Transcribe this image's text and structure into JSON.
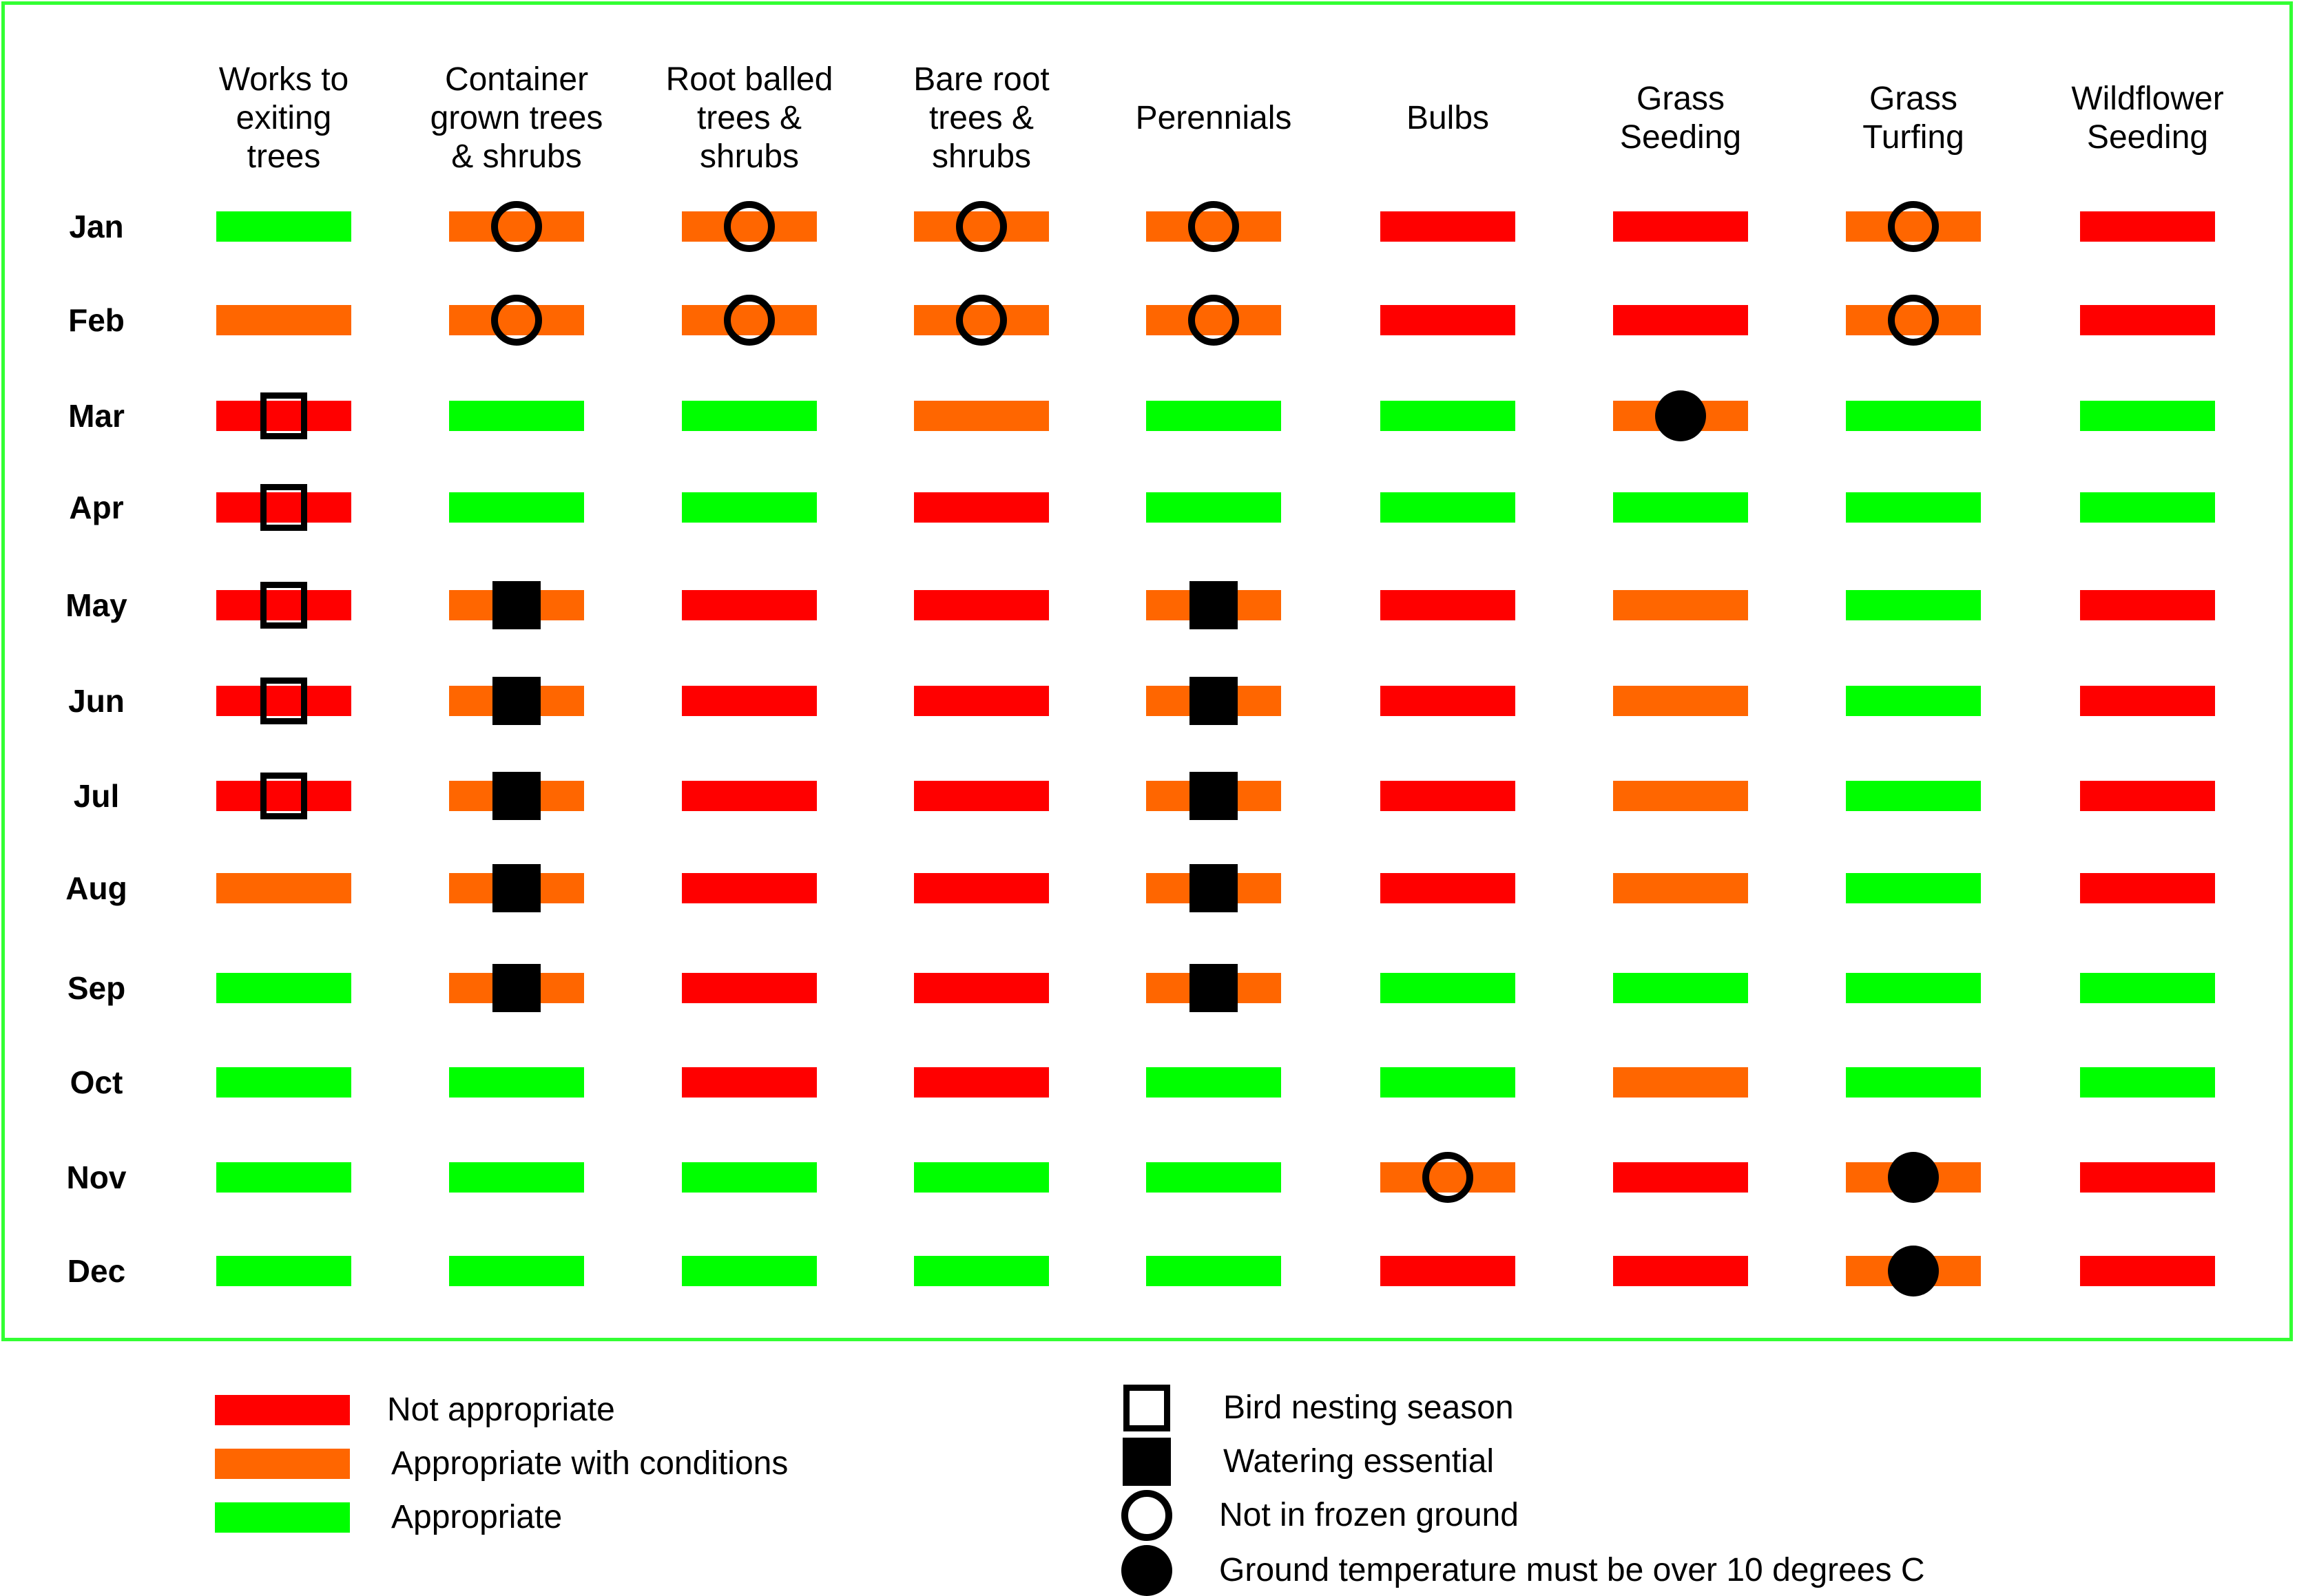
{
  "colors": {
    "red": "#ff0000",
    "orange": "#ff6600",
    "green": "#00ff00",
    "frame": "#33ff33"
  },
  "columns": [
    "Works to\nexiting\ntrees",
    "Container\ngrown trees\n& shrubs",
    "Root balled\ntrees &\nshrubs",
    "Bare root\ntrees &\nshrubs",
    "Perennials",
    "Bulbs",
    "Grass\nSeeding",
    "Grass\nTurfing",
    "Wildflower\nSeeding"
  ],
  "months": [
    "Jan",
    "Feb",
    "Mar",
    "Apr",
    "May",
    "Jun",
    "Jul",
    "Aug",
    "Sep",
    "Oct",
    "Nov",
    "Dec"
  ],
  "grid": [
    [
      "green",
      "orange",
      "orange",
      "orange",
      "orange",
      "red",
      "red",
      "orange",
      "red"
    ],
    [
      "orange",
      "orange",
      "orange",
      "orange",
      "orange",
      "red",
      "red",
      "orange",
      "red"
    ],
    [
      "red",
      "green",
      "green",
      "orange",
      "green",
      "green",
      "orange",
      "green",
      "green"
    ],
    [
      "red",
      "green",
      "green",
      "red",
      "green",
      "green",
      "green",
      "green",
      "green"
    ],
    [
      "red",
      "orange",
      "red",
      "red",
      "orange",
      "red",
      "orange",
      "green",
      "red"
    ],
    [
      "red",
      "orange",
      "red",
      "red",
      "orange",
      "red",
      "orange",
      "green",
      "red"
    ],
    [
      "red",
      "orange",
      "red",
      "red",
      "orange",
      "red",
      "orange",
      "green",
      "red"
    ],
    [
      "orange",
      "orange",
      "red",
      "red",
      "orange",
      "red",
      "orange",
      "green",
      "red"
    ],
    [
      "green",
      "orange",
      "red",
      "red",
      "orange",
      "green",
      "green",
      "green",
      "green"
    ],
    [
      "green",
      "green",
      "red",
      "red",
      "green",
      "green",
      "orange",
      "green",
      "green"
    ],
    [
      "green",
      "green",
      "green",
      "green",
      "green",
      "orange",
      "red",
      "orange",
      "red"
    ],
    [
      "green",
      "green",
      "green",
      "green",
      "green",
      "red",
      "red",
      "orange",
      "red"
    ]
  ],
  "markers": [
    [
      null,
      "circle-open",
      "circle-open",
      "circle-open",
      "circle-open",
      null,
      null,
      "circle-open",
      null
    ],
    [
      null,
      "circle-open",
      "circle-open",
      "circle-open",
      "circle-open",
      null,
      null,
      "circle-open",
      null
    ],
    [
      "square-open",
      null,
      null,
      null,
      null,
      null,
      "circle-filled",
      null,
      null
    ],
    [
      "square-open",
      null,
      null,
      null,
      null,
      null,
      null,
      null,
      null
    ],
    [
      "square-open",
      "square-filled",
      null,
      null,
      "square-filled",
      null,
      null,
      null,
      null
    ],
    [
      "square-open",
      "square-filled",
      null,
      null,
      "square-filled",
      null,
      null,
      null,
      null
    ],
    [
      "square-open",
      "square-filled",
      null,
      null,
      "square-filled",
      null,
      null,
      null,
      null
    ],
    [
      null,
      "square-filled",
      null,
      null,
      "square-filled",
      null,
      null,
      null,
      null
    ],
    [
      null,
      "square-filled",
      null,
      null,
      "square-filled",
      null,
      null,
      null,
      null
    ],
    [
      null,
      null,
      null,
      null,
      null,
      null,
      null,
      null,
      null
    ],
    [
      null,
      null,
      null,
      null,
      null,
      "circle-open",
      null,
      "circle-filled",
      null
    ],
    [
      null,
      null,
      null,
      null,
      null,
      null,
      null,
      "circle-filled",
      null
    ]
  ],
  "legend": {
    "colors": [
      {
        "color": "red",
        "label": "Not appropriate"
      },
      {
        "color": "orange",
        "label": "Appropriate with conditions"
      },
      {
        "color": "green",
        "label": "Appropriate"
      }
    ],
    "symbols": [
      {
        "symbol": "square-open",
        "label": "Bird nesting season"
      },
      {
        "symbol": "square-filled",
        "label": "Watering essential"
      },
      {
        "symbol": "circle-open",
        "label": "Not in frozen ground"
      },
      {
        "symbol": "circle-filled",
        "label": "Ground temperature must be over 10 degrees C"
      }
    ]
  }
}
